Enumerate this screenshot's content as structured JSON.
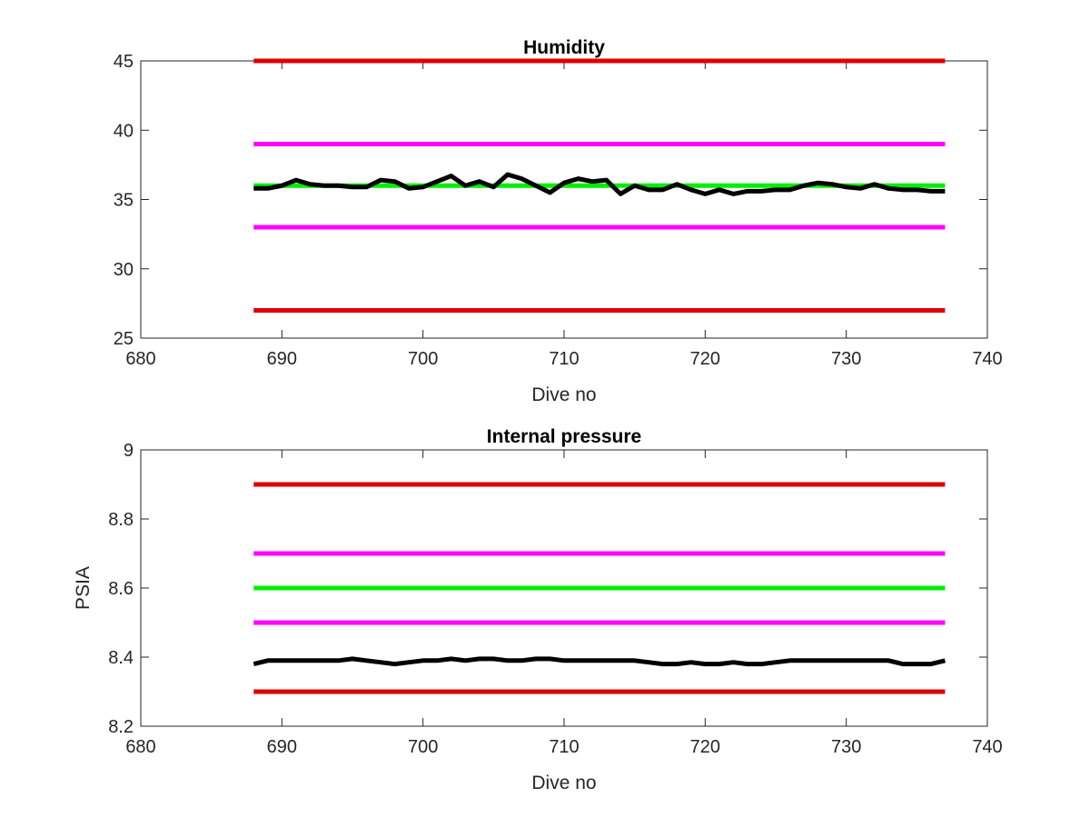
{
  "chart_data": [
    {
      "type": "line",
      "title": "Humidity",
      "xlabel": "Dive no",
      "ylabel": "",
      "xlim": [
        680,
        740
      ],
      "ylim": [
        25,
        45
      ],
      "xticks": [
        680,
        690,
        700,
        710,
        720,
        730,
        740
      ],
      "yticks": [
        25,
        30,
        35,
        40,
        45
      ],
      "grid": false,
      "series": [
        {
          "color": "#dd0000",
          "x": [
            688,
            737
          ],
          "y": [
            45,
            45
          ]
        },
        {
          "color": "#ff00ff",
          "x": [
            688,
            737
          ],
          "y": [
            39,
            39
          ]
        },
        {
          "color": "#00ee00",
          "x": [
            688,
            737
          ],
          "y": [
            36,
            36
          ]
        },
        {
          "color": "#ff00ff",
          "x": [
            688,
            737
          ],
          "y": [
            33,
            33
          ]
        },
        {
          "color": "#dd0000",
          "x": [
            688,
            737
          ],
          "y": [
            27,
            27
          ]
        },
        {
          "color": "#000000",
          "x": [
            688,
            689,
            690,
            691,
            692,
            693,
            694,
            695,
            696,
            697,
            698,
            699,
            700,
            701,
            702,
            703,
            704,
            705,
            706,
            707,
            708,
            709,
            710,
            711,
            712,
            713,
            714,
            715,
            716,
            717,
            718,
            719,
            720,
            721,
            722,
            723,
            724,
            725,
            726,
            727,
            728,
            729,
            730,
            731,
            732,
            733,
            734,
            735,
            736,
            737
          ],
          "y": [
            35.8,
            35.8,
            36.0,
            36.4,
            36.1,
            36.0,
            36.0,
            35.9,
            35.9,
            36.4,
            36.3,
            35.8,
            35.9,
            36.3,
            36.7,
            36.0,
            36.3,
            35.9,
            36.8,
            36.5,
            36.0,
            35.5,
            36.2,
            36.5,
            36.3,
            36.4,
            35.4,
            36.0,
            35.7,
            35.7,
            36.1,
            35.7,
            35.4,
            35.7,
            35.4,
            35.6,
            35.6,
            35.7,
            35.7,
            36.0,
            36.2,
            36.1,
            35.9,
            35.8,
            36.1,
            35.8,
            35.7,
            35.7,
            35.6,
            35.6
          ]
        }
      ]
    },
    {
      "type": "line",
      "title": "Internal pressure",
      "xlabel": "Dive no",
      "ylabel": "PSIA",
      "xlim": [
        680,
        740
      ],
      "ylim": [
        8.2,
        9.0
      ],
      "xticks": [
        680,
        690,
        700,
        710,
        720,
        730,
        740
      ],
      "yticks": [
        8.2,
        8.4,
        8.6,
        8.8,
        9.0
      ],
      "yticklabels": [
        "8.2",
        "8.4",
        "8.6",
        "8.8",
        "9"
      ],
      "grid": false,
      "series": [
        {
          "color": "#dd0000",
          "x": [
            688,
            737
          ],
          "y": [
            8.9,
            8.9
          ]
        },
        {
          "color": "#ff00ff",
          "x": [
            688,
            737
          ],
          "y": [
            8.7,
            8.7
          ]
        },
        {
          "color": "#00ee00",
          "x": [
            688,
            737
          ],
          "y": [
            8.6,
            8.6
          ]
        },
        {
          "color": "#ff00ff",
          "x": [
            688,
            737
          ],
          "y": [
            8.5,
            8.5
          ]
        },
        {
          "color": "#dd0000",
          "x": [
            688,
            737
          ],
          "y": [
            8.3,
            8.3
          ]
        },
        {
          "color": "#000000",
          "x": [
            688,
            689,
            690,
            691,
            692,
            693,
            694,
            695,
            696,
            697,
            698,
            699,
            700,
            701,
            702,
            703,
            704,
            705,
            706,
            707,
            708,
            709,
            710,
            711,
            712,
            713,
            714,
            715,
            716,
            717,
            718,
            719,
            720,
            721,
            722,
            723,
            724,
            725,
            726,
            727,
            728,
            729,
            730,
            731,
            732,
            733,
            734,
            735,
            736,
            737
          ],
          "y": [
            8.38,
            8.39,
            8.39,
            8.39,
            8.39,
            8.39,
            8.39,
            8.395,
            8.39,
            8.385,
            8.38,
            8.385,
            8.39,
            8.39,
            8.395,
            8.39,
            8.395,
            8.395,
            8.39,
            8.39,
            8.395,
            8.395,
            8.39,
            8.39,
            8.39,
            8.39,
            8.39,
            8.39,
            8.385,
            8.38,
            8.38,
            8.385,
            8.38,
            8.38,
            8.385,
            8.38,
            8.38,
            8.385,
            8.39,
            8.39,
            8.39,
            8.39,
            8.39,
            8.39,
            8.39,
            8.39,
            8.38,
            8.38,
            8.38,
            8.39
          ]
        }
      ]
    }
  ]
}
